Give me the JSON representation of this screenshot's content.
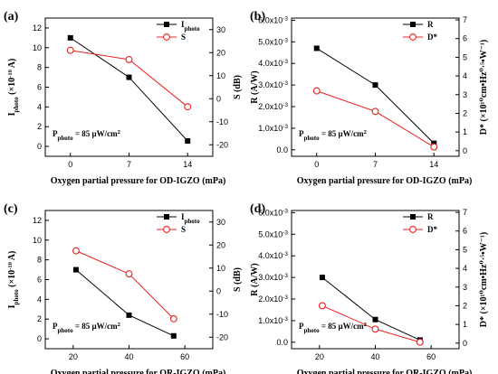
{
  "colors": {
    "left_series": "#000000",
    "right_series": "#e8201f",
    "axis": "#000000"
  },
  "chart_data": [
    {
      "panel_label": "(a)",
      "type": "line",
      "x": [
        0,
        7,
        14
      ],
      "xticks": [
        "0",
        "7",
        "14"
      ],
      "xlim": [
        -3,
        17
      ],
      "xlabel": "Oxygen partial pressure for OD-IGZO (mPa)",
      "left_axis": {
        "label_main": "I",
        "label_sub": "photo",
        "label_rest": " (×10",
        "label_sup": "-10",
        "label_end": " A)",
        "ylim": [
          -1,
          13
        ],
        "ticks": [
          "0",
          "2",
          "4",
          "6",
          "8",
          "10",
          "12"
        ],
        "tick_values": [
          0,
          2,
          4,
          6,
          8,
          10,
          12
        ]
      },
      "right_axis": {
        "label": "S (dB)",
        "ylim": [
          -25,
          35
        ],
        "ticks": [
          "-20",
          "-10",
          "0",
          "10",
          "20",
          "30"
        ],
        "tick_values": [
          -20,
          -10,
          0,
          10,
          20,
          30
        ]
      },
      "series": [
        {
          "name_main": "I",
          "name_sub": "photo",
          "axis": "left",
          "marker": "square",
          "values": [
            11,
            7,
            0.55
          ]
        },
        {
          "name_main": "S",
          "name_sub": "",
          "axis": "right",
          "marker": "circle",
          "values": [
            21,
            17,
            -3.5
          ]
        }
      ],
      "annotation": {
        "main": "P",
        "sub": "photo",
        "rest": " = 85 μW/cm",
        "sup": "2"
      },
      "legend_position": "top-right"
    },
    {
      "panel_label": "(b)",
      "type": "line",
      "x": [
        0,
        7,
        14
      ],
      "xticks": [
        "0",
        "7",
        "14"
      ],
      "xlim": [
        -3,
        17
      ],
      "xlabel": "Oxygen partial pressure for OD-IGZO (mPa)",
      "left_axis": {
        "label_main": "R (A/W)",
        "label_sub": "",
        "label_rest": "",
        "label_sup": "",
        "label_end": "",
        "ylim": [
          -0.0003,
          0.0061
        ],
        "ticks": [
          "0.0",
          "1.0x10-3",
          "2.0x10-3",
          "3.0x10-3",
          "4.0x10-3",
          "5.0x10-3",
          "6.0x10-3"
        ],
        "tick_values": [
          0,
          0.001,
          0.002,
          0.003,
          0.004,
          0.005,
          0.006
        ]
      },
      "right_axis": {
        "label": "D* (×10¹⁰cm•Hz⁰·⁵•W⁻¹)",
        "ylim": [
          -0.3,
          7.1
        ],
        "ticks": [
          "0",
          "1",
          "2",
          "3",
          "4",
          "5",
          "6",
          "7"
        ],
        "tick_values": [
          0,
          1,
          2,
          3,
          4,
          5,
          6,
          7
        ]
      },
      "series": [
        {
          "name_main": "R",
          "name_sub": "",
          "axis": "left",
          "marker": "square",
          "values": [
            0.0047,
            0.003,
            0.0003
          ]
        },
        {
          "name_main": "D*",
          "name_sub": "",
          "axis": "right",
          "marker": "circle",
          "values": [
            3.2,
            2.1,
            0.2
          ]
        }
      ],
      "annotation": {
        "main": "P",
        "sub": "photo",
        "rest": " = 85 μW/cm",
        "sup": "2"
      },
      "legend_position": "top-right"
    },
    {
      "panel_label": "(c)",
      "type": "line",
      "x": [
        21,
        40,
        56
      ],
      "xticks": [
        "20",
        "40",
        "60"
      ],
      "xtick_values": [
        20,
        40,
        60
      ],
      "xlim": [
        10,
        70
      ],
      "xlabel": "Oxygen partial pressure for OR-IGZO (mPa)",
      "left_axis": {
        "label_main": "I",
        "label_sub": "photo",
        "label_rest": " (×10",
        "label_sup": "-10",
        "label_end": " A)",
        "ylim": [
          -1,
          13
        ],
        "ticks": [
          "0",
          "2",
          "4",
          "6",
          "8",
          "10",
          "12"
        ],
        "tick_values": [
          0,
          2,
          4,
          6,
          8,
          10,
          12
        ]
      },
      "right_axis": {
        "label": "S (dB)",
        "ylim": [
          -25,
          35
        ],
        "ticks": [
          "-20",
          "-10",
          "0",
          "10",
          "20",
          "30"
        ],
        "tick_values": [
          -20,
          -10,
          0,
          10,
          20,
          30
        ]
      },
      "series": [
        {
          "name_main": "I",
          "name_sub": "photo",
          "axis": "left",
          "marker": "square",
          "values": [
            7,
            2.4,
            0.3
          ]
        },
        {
          "name_main": "S",
          "name_sub": "",
          "axis": "right",
          "marker": "circle",
          "values": [
            17.5,
            7.5,
            -12
          ]
        }
      ],
      "annotation": {
        "main": "P",
        "sub": "photo",
        "rest": " = 85 μW/cm",
        "sup": "2"
      },
      "legend_position": "top-right"
    },
    {
      "panel_label": "(d)",
      "type": "line",
      "x": [
        21,
        40,
        56
      ],
      "xticks": [
        "20",
        "40",
        "60"
      ],
      "xtick_values": [
        20,
        40,
        60
      ],
      "xlim": [
        10,
        70
      ],
      "xlabel": "Oxygen partial pressure for OR-IGZO (mPa)",
      "left_axis": {
        "label_main": "R (A/W)",
        "label_sub": "",
        "label_rest": "",
        "label_sup": "",
        "label_end": "",
        "ylim": [
          -0.0003,
          0.0061
        ],
        "ticks": [
          "0.0",
          "1.0x10-3",
          "2.0x10-3",
          "3.0x10-3",
          "4.0x10-3",
          "5.0x10-3",
          "6.0x10-3"
        ],
        "tick_values": [
          0,
          0.001,
          0.002,
          0.003,
          0.004,
          0.005,
          0.006
        ]
      },
      "right_axis": {
        "label": "D* (×10¹⁰cm•Hz⁰·⁵•W⁻¹)",
        "ylim": [
          -0.3,
          7.1
        ],
        "ticks": [
          "0",
          "1",
          "2",
          "3",
          "4",
          "5",
          "6",
          "7"
        ],
        "tick_values": [
          0,
          1,
          2,
          3,
          4,
          5,
          6,
          7
        ]
      },
      "series": [
        {
          "name_main": "R",
          "name_sub": "",
          "axis": "left",
          "marker": "square",
          "values": [
            0.003,
            0.00105,
            0.0001
          ]
        },
        {
          "name_main": "D*",
          "name_sub": "",
          "axis": "right",
          "marker": "circle",
          "values": [
            2.0,
            0.75,
            0.05
          ]
        }
      ],
      "annotation": {
        "main": "P",
        "sub": "photo",
        "rest": " = 85 μW/cm",
        "sup": "2"
      },
      "legend_position": "top-right"
    }
  ]
}
